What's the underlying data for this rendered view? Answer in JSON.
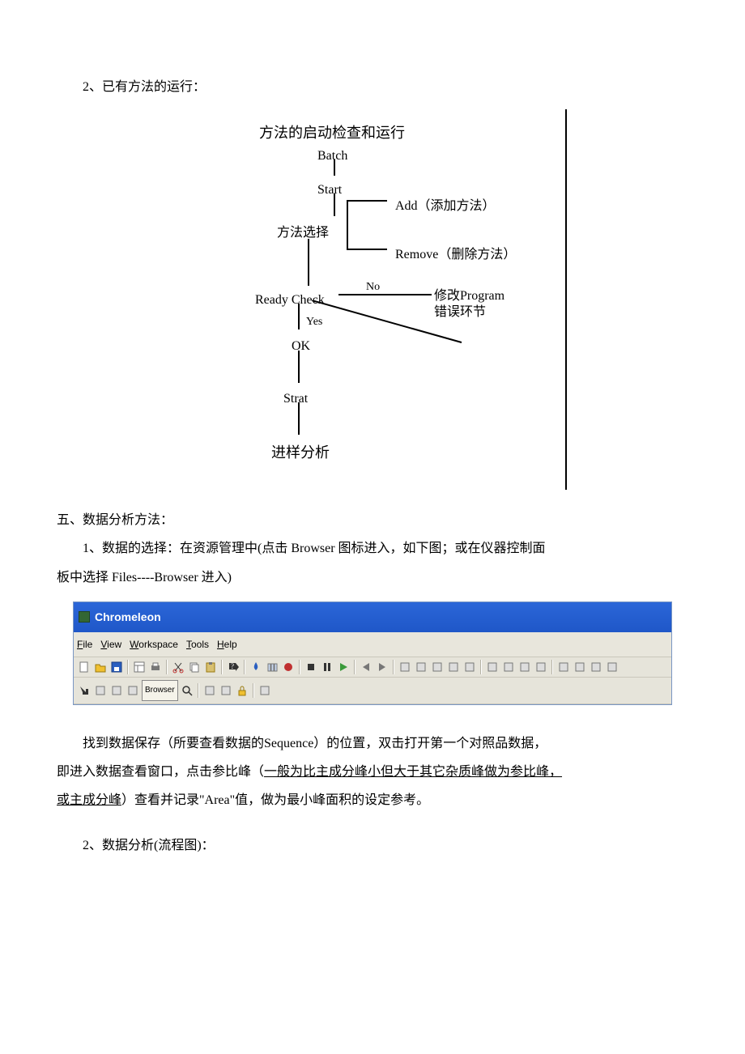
{
  "text": {
    "p1": "2、已有方法的运行：",
    "p2": "五、数据分析方法：",
    "p3a": "1、数据的选择：在资源管理中(点击 Browser 图标进入，如下图；或在仪器控制面",
    "p3b": "板中选择 Files----Browser 进入)",
    "p4a": "找到数据保存（所要查看数据的Sequence）的位置，双击打开第一个对照品数据，",
    "p4b_pre": "即进入数据查看窗口，点击参比峰（",
    "p4b_u": "一般为比主成分峰小但大于其它杂质峰做为参比峰，",
    "p4c_u": "或主成分峰",
    "p4c_post": "）查看并记录\"Area\"值，做为最小峰面积的设定参考。",
    "p5": "2、数据分析(流程图)："
  },
  "flow": {
    "title": "方法的启动检查和运行",
    "n_batch": "Batch",
    "n_start": "Start",
    "n_method": "方法选择",
    "n_add": "Add（添加方法）",
    "n_remove": "Remove（删除方法）",
    "n_ready": "Ready Check",
    "n_no": "No",
    "n_modify1": "修改Program",
    "n_modify2": "错误环节",
    "n_yes": "Yes",
    "n_ok": "OK",
    "n_strat": "Strat",
    "n_analysis": "进样分析"
  },
  "app": {
    "title": "Chromeleon",
    "menus": [
      {
        "key": "F",
        "rest": "ile"
      },
      {
        "key": "V",
        "rest": "iew"
      },
      {
        "key": "W",
        "rest": "orkspace"
      },
      {
        "key": "T",
        "rest": "ools"
      },
      {
        "key": "H",
        "rest": "elp"
      }
    ],
    "browser_label": "Browser",
    "icons_row1": [
      "new",
      "open",
      "save",
      "panel",
      "print",
      "cut",
      "copy",
      "paste",
      "help",
      "drop",
      "vials",
      "circle",
      "stop",
      "pause",
      "play",
      "back",
      "fwd",
      "a",
      "sq1",
      "sq2",
      "grid",
      "sw",
      "o1",
      "chart",
      "g2",
      "g3",
      "b1",
      "b2",
      "p1",
      "p2"
    ],
    "icons_row2": [
      "arrow",
      "dim1",
      "dim2",
      "dim3",
      "browser",
      "zoom",
      "n1",
      "n2",
      "lock",
      "cfg"
    ]
  },
  "colors": {
    "titlebar_top": "#2b66d8",
    "titlebar_bot": "#1f57c8",
    "menubar_bg": "#e8e6dc",
    "toolbar_bg": "#e6e4da",
    "flow_line": "#000000"
  }
}
